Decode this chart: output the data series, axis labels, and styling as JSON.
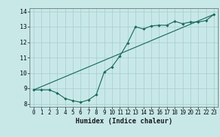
{
  "xlabel": "Humidex (Indice chaleur)",
  "ylabel": "",
  "bg_color": "#c8e8e8",
  "line_color": "#1a6b5a",
  "grid_color": "#a8cece",
  "xlim": [
    -0.5,
    23.5
  ],
  "ylim": [
    7.8,
    14.2
  ],
  "xticks": [
    0,
    1,
    2,
    3,
    4,
    5,
    6,
    7,
    8,
    9,
    10,
    11,
    12,
    13,
    14,
    15,
    16,
    17,
    18,
    19,
    20,
    21,
    22,
    23
  ],
  "yticks": [
    8,
    9,
    10,
    11,
    12,
    13,
    14
  ],
  "line1_x": [
    0,
    1,
    2,
    3,
    4,
    5,
    6,
    7,
    8,
    9,
    10,
    11,
    12,
    13,
    14,
    15,
    16,
    17,
    18,
    19,
    20,
    21,
    22,
    23
  ],
  "line1_y": [
    8.9,
    8.9,
    8.9,
    8.7,
    8.35,
    8.2,
    8.1,
    8.25,
    8.6,
    10.05,
    10.4,
    11.1,
    11.95,
    13.0,
    12.85,
    13.05,
    13.1,
    13.1,
    13.35,
    13.2,
    13.3,
    13.3,
    13.4,
    13.8
  ],
  "line2_x": [
    0,
    23
  ],
  "line2_y": [
    8.9,
    13.8
  ],
  "xlabel_fontsize": 7,
  "tick_fontsize": 5.5,
  "marker_size": 2.0,
  "line_width": 0.9
}
